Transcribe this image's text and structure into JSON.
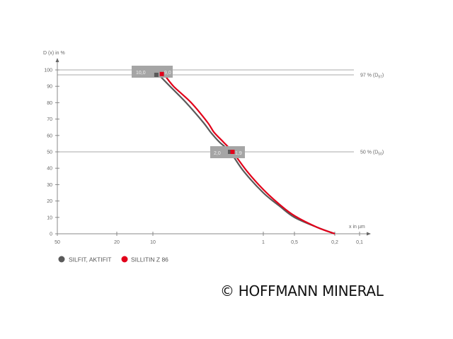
{
  "chart_data": {
    "type": "line",
    "ylabel": "D (x) in %",
    "xlabel": "x in µm",
    "x_scale": "log-reversed",
    "xlim": [
      50,
      0.1
    ],
    "ylim": [
      0,
      100
    ],
    "x_ticks": [
      50,
      20,
      10,
      1,
      0.5,
      0.2,
      0.1
    ],
    "x_tick_labels": [
      "50",
      "20",
      "10",
      "1",
      "0,5",
      "0,2",
      "0,1"
    ],
    "y_ticks": [
      0,
      10,
      20,
      30,
      40,
      50,
      60,
      70,
      80,
      90,
      100
    ],
    "y_tick_labels": [
      "0",
      "10",
      "20",
      "30",
      "40",
      "50",
      "60",
      "70",
      "80",
      "90",
      "100"
    ],
    "reference_lines": [
      {
        "y": 100
      },
      {
        "y": 97,
        "label_prefix": "97 % (D",
        "label_sub": "97",
        "label_suffix": ")"
      },
      {
        "y": 50,
        "label_prefix": "50 % (D",
        "label_sub": "50",
        "label_suffix": ")"
      }
    ],
    "series": [
      {
        "name": "SILFIT, AKTIFIT",
        "color": "#5a5a5a",
        "x": [
          10,
          9,
          7,
          5,
          3.5,
          3,
          2.5,
          2,
          1.5,
          1,
          0.7,
          0.5,
          0.3,
          0.2
        ],
        "y": [
          100,
          97.5,
          90,
          80,
          68,
          62,
          56,
          50,
          38,
          25,
          17,
          10,
          4,
          0
        ],
        "d97": "10,0",
        "d50": "2,0"
      },
      {
        "name": "SILLITIN Z 86",
        "color": "#e2001a",
        "x": [
          9,
          8,
          6.5,
          4.5,
          3.2,
          2.8,
          2.3,
          1.9,
          1.4,
          1,
          0.7,
          0.5,
          0.3,
          0.2
        ],
        "y": [
          100,
          97.5,
          90,
          80,
          68,
          62,
          56,
          50,
          38,
          27,
          18,
          11,
          4,
          0
        ],
        "d97": "9,0",
        "d50": "1,9"
      }
    ],
    "grid": false,
    "legend": "bottom-left"
  },
  "copyright": "© HOFFMANN MINERAL"
}
